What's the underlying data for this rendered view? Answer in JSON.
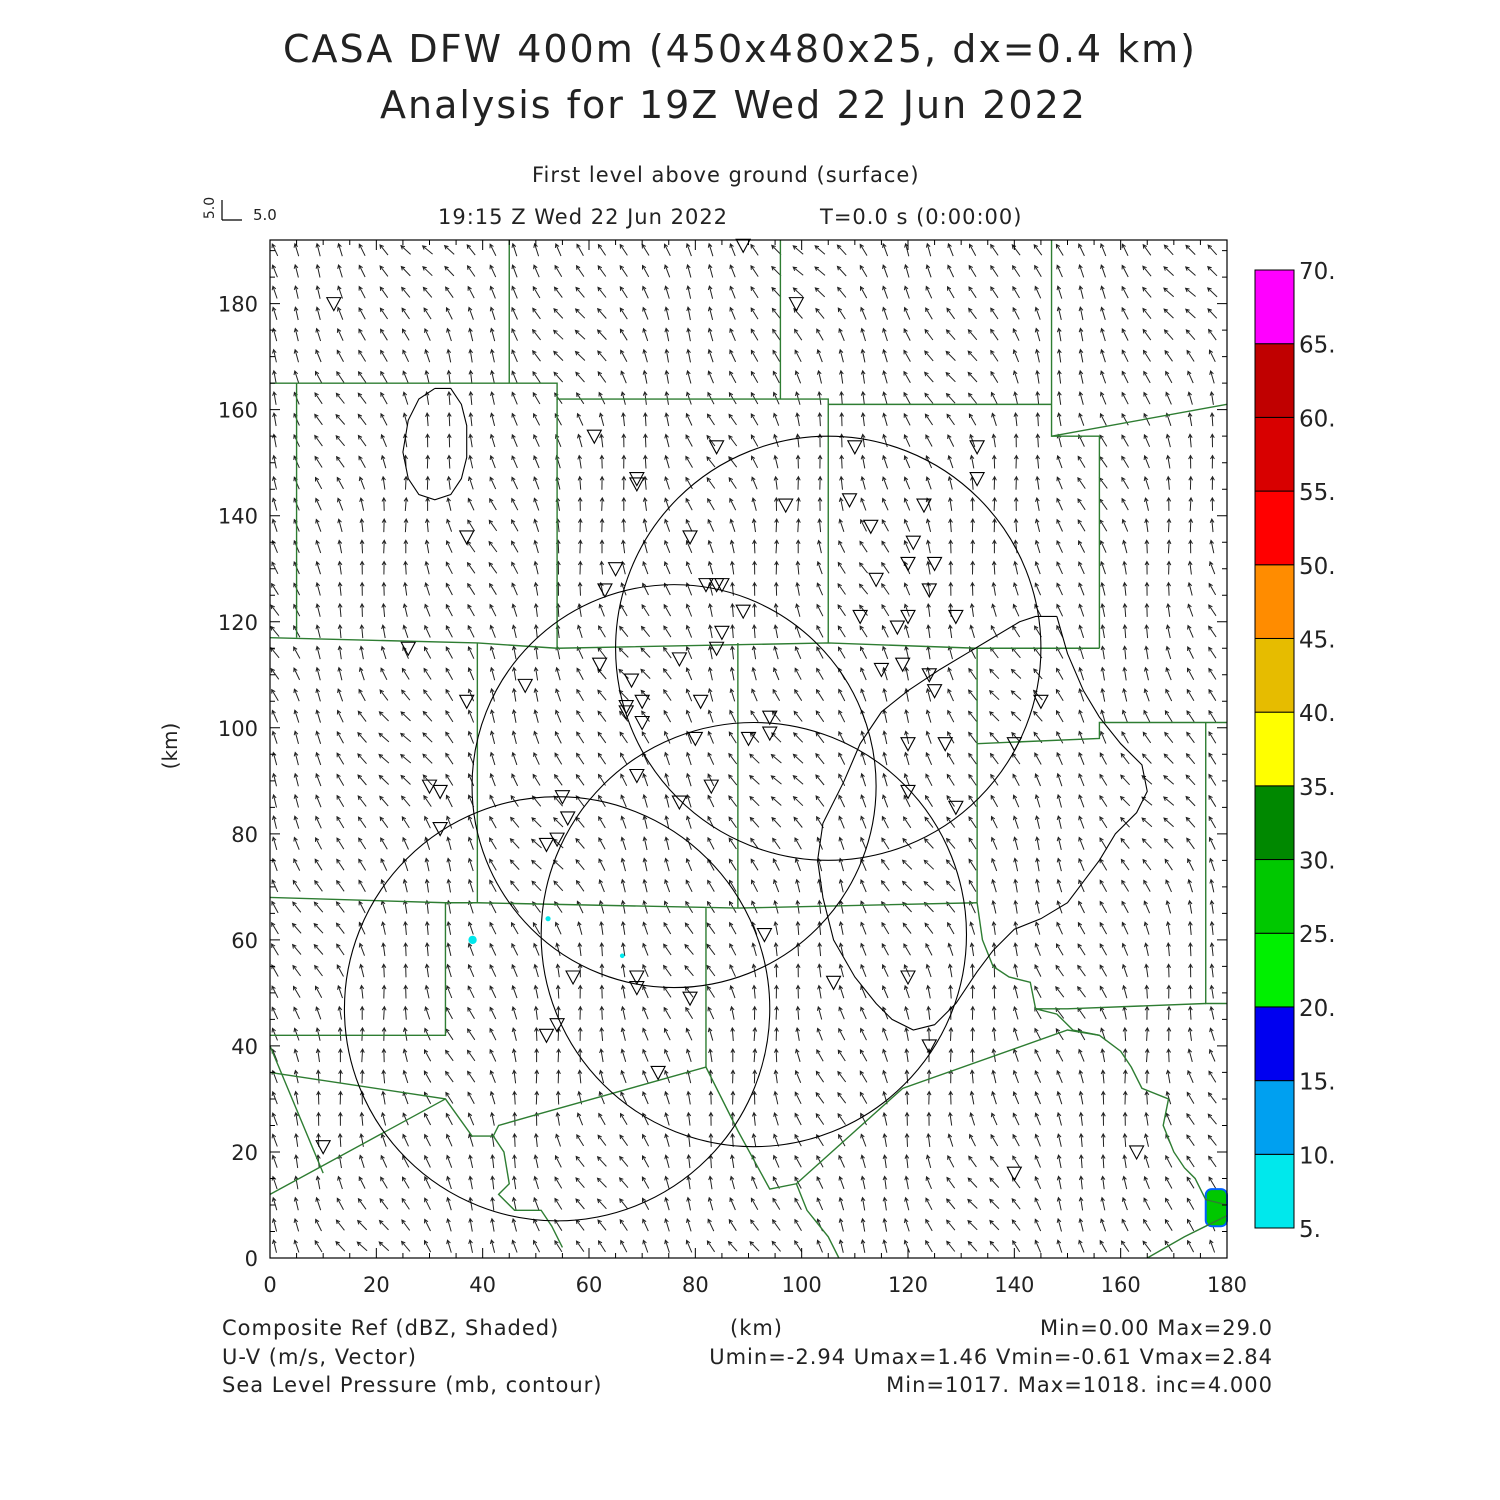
{
  "title_line1": "CASA DFW 400m (450x480x25, dx=0.4 km)",
  "title_line2": "Analysis for 19Z Wed 22 Jun 2022",
  "level_label": "First level above ground (surface)",
  "time_label": "19:15 Z Wed 22 Jun 2022",
  "time_step_label": "T=0.0 s (0:00:00)",
  "vector_scale": {
    "x_label": "5.0",
    "y_label": "5.0"
  },
  "axes": {
    "x_ticks": [
      "0",
      "20",
      "40",
      "60",
      "80",
      "100",
      "120",
      "140",
      "160",
      "180"
    ],
    "y_ticks": [
      "0",
      "20",
      "40",
      "60",
      "80",
      "100",
      "120",
      "140",
      "160",
      "180"
    ],
    "x_unit": "(km)",
    "y_unit": "(km)",
    "xlim": [
      0,
      180
    ],
    "ylim": [
      0,
      192
    ]
  },
  "colorbar": {
    "labels": [
      "5.",
      "10.",
      "15.",
      "20.",
      "25.",
      "30.",
      "35.",
      "40.",
      "45.",
      "50.",
      "55.",
      "60.",
      "65.",
      "70."
    ],
    "colors": [
      "#00e8ec",
      "#00a0f0",
      "#0000f0",
      "#00f000",
      "#00c800",
      "#008800",
      "#ffff00",
      "#e6bc00",
      "#ff8c00",
      "#ff0000",
      "#d80000",
      "#c00000",
      "#ff00ff"
    ]
  },
  "footer": {
    "left1": "Composite Ref (dBZ, Shaded)",
    "left2": "U-V (m/s, Vector)",
    "left3": "Sea Level Pressure (mb, contour)",
    "center": "(km)",
    "right1": "Min=0.00 Max=29.0",
    "right2": "Umin=-2.94 Umax=1.46 Vmin=-0.61 Vmax=2.84",
    "right3": "Min=1017. Max=1018. inc=4.000"
  },
  "colors": {
    "boundary": "#2e7d32",
    "contour": "#000000",
    "radar_marker": "#000000",
    "echo": "#00c800"
  },
  "map_data": {
    "radar_rings": [
      {
        "cx": 105,
        "cy": 115,
        "r": 40
      },
      {
        "cx": 76,
        "cy": 89,
        "r": 38
      },
      {
        "cx": 91,
        "cy": 61,
        "r": 40
      },
      {
        "cx": 54,
        "cy": 47,
        "r": 40
      }
    ],
    "markers": [
      [
        12,
        180
      ],
      [
        89,
        191
      ],
      [
        99,
        180
      ],
      [
        61,
        155
      ],
      [
        84,
        153
      ],
      [
        69,
        146
      ],
      [
        69,
        147
      ],
      [
        110,
        153
      ],
      [
        133,
        153
      ],
      [
        97,
        142
      ],
      [
        109,
        143
      ],
      [
        123,
        142
      ],
      [
        133,
        147
      ],
      [
        113,
        138
      ],
      [
        37,
        136
      ],
      [
        79,
        136
      ],
      [
        65,
        130
      ],
      [
        82,
        127
      ],
      [
        84,
        127
      ],
      [
        85,
        127
      ],
      [
        63,
        126
      ],
      [
        114,
        128
      ],
      [
        121,
        135
      ],
      [
        120,
        131
      ],
      [
        125,
        131
      ],
      [
        124,
        126
      ],
      [
        89,
        122
      ],
      [
        111,
        121
      ],
      [
        120,
        121
      ],
      [
        129,
        121
      ],
      [
        118,
        119
      ],
      [
        85,
        118
      ],
      [
        84,
        115
      ],
      [
        26,
        115
      ],
      [
        62,
        112
      ],
      [
        77,
        113
      ],
      [
        115,
        111
      ],
      [
        119,
        112
      ],
      [
        124,
        110
      ],
      [
        125,
        107
      ],
      [
        68,
        109
      ],
      [
        48,
        108
      ],
      [
        37,
        105
      ],
      [
        81,
        105
      ],
      [
        70,
        105
      ],
      [
        67,
        104
      ],
      [
        67,
        103
      ],
      [
        70,
        101
      ],
      [
        94,
        102
      ],
      [
        145,
        105
      ],
      [
        80,
        98
      ],
      [
        90,
        98
      ],
      [
        94,
        99
      ],
      [
        120,
        97
      ],
      [
        127,
        97
      ],
      [
        140,
        97
      ],
      [
        83,
        89
      ],
      [
        69,
        91
      ],
      [
        30,
        89
      ],
      [
        32,
        88
      ],
      [
        55,
        87
      ],
      [
        77,
        86
      ],
      [
        120,
        88
      ],
      [
        129,
        85
      ],
      [
        32,
        81
      ],
      [
        56,
        83
      ],
      [
        54,
        79
      ],
      [
        52,
        78
      ],
      [
        93,
        61
      ],
      [
        57,
        53
      ],
      [
        69,
        53
      ],
      [
        69,
        51
      ],
      [
        79,
        49
      ],
      [
        106,
        52
      ],
      [
        120,
        53
      ],
      [
        54,
        44
      ],
      [
        52,
        42
      ],
      [
        124,
        40
      ],
      [
        73,
        35
      ],
      [
        10,
        21
      ],
      [
        163,
        20
      ],
      [
        140,
        16
      ]
    ],
    "boundaries": [
      [
        [
          0,
          165
        ],
        [
          49,
          165
        ],
        [
          54,
          165
        ],
        [
          54,
          162
        ],
        [
          96,
          162
        ],
        [
          101,
          162
        ],
        [
          105,
          162
        ],
        [
          105,
          161
        ],
        [
          147,
          161
        ]
      ],
      [
        [
          147,
          192
        ],
        [
          147,
          161
        ],
        [
          147,
          155
        ],
        [
          156,
          155
        ],
        [
          156,
          115
        ]
      ],
      [
        [
          147,
          155
        ],
        [
          180,
          161
        ]
      ],
      [
        [
          45,
          192
        ],
        [
          45,
          165
        ]
      ],
      [
        [
          96,
          192
        ],
        [
          96,
          162
        ]
      ],
      [
        [
          5,
          165
        ],
        [
          5,
          117
        ]
      ],
      [
        [
          54,
          162
        ],
        [
          54,
          115
        ]
      ],
      [
        [
          105,
          161
        ],
        [
          105,
          116
        ]
      ],
      [
        [
          0,
          117
        ],
        [
          39,
          116
        ],
        [
          54,
          115
        ],
        [
          105,
          116
        ],
        [
          133,
          115
        ],
        [
          156,
          115
        ]
      ],
      [
        [
          39,
          116
        ],
        [
          39,
          67
        ]
      ],
      [
        [
          88,
          116
        ],
        [
          88,
          66
        ]
      ],
      [
        [
          133,
          115
        ],
        [
          133,
          67
        ]
      ],
      [
        [
          133,
          97
        ],
        [
          156,
          98
        ],
        [
          156,
          101
        ],
        [
          176,
          101
        ],
        [
          180,
          101
        ]
      ],
      [
        [
          176,
          101
        ],
        [
          176,
          48
        ],
        [
          180,
          48
        ]
      ],
      [
        [
          0,
          68
        ],
        [
          33,
          67
        ],
        [
          39,
          67
        ],
        [
          88,
          66
        ],
        [
          133,
          67
        ]
      ],
      [
        [
          33,
          67
        ],
        [
          33,
          42
        ],
        [
          0,
          42
        ]
      ],
      [
        [
          133,
          67
        ],
        [
          134,
          60
        ],
        [
          136,
          55
        ],
        [
          139,
          53
        ],
        [
          143,
          52
        ],
        [
          144,
          47
        ],
        [
          150,
          47
        ],
        [
          176,
          48
        ]
      ],
      [
        [
          144,
          47
        ],
        [
          148,
          46
        ],
        [
          151,
          43
        ],
        [
          156,
          42
        ],
        [
          160,
          39
        ],
        [
          162,
          36
        ],
        [
          164,
          32
        ],
        [
          169,
          30
        ],
        [
          168,
          25
        ],
        [
          170,
          20
        ],
        [
          172,
          17
        ],
        [
          174,
          15
        ],
        [
          175,
          13
        ],
        [
          176,
          11
        ],
        [
          180,
          10
        ]
      ],
      [
        [
          0,
          35
        ],
        [
          33,
          30
        ],
        [
          38,
          23
        ],
        [
          42,
          23
        ],
        [
          43,
          25
        ],
        [
          50,
          27
        ],
        [
          82,
          36
        ],
        [
          88,
          24
        ],
        [
          94,
          13
        ],
        [
          99,
          14
        ],
        [
          119,
          32
        ],
        [
          150,
          43
        ],
        [
          156,
          42
        ]
      ],
      [
        [
          33,
          30
        ],
        [
          0,
          12
        ]
      ],
      [
        [
          0,
          40
        ],
        [
          10,
          16
        ]
      ],
      [
        [
          82,
          36
        ],
        [
          82,
          66
        ]
      ],
      [
        [
          42,
          23
        ],
        [
          44,
          20
        ],
        [
          45,
          14
        ],
        [
          43,
          12
        ],
        [
          46,
          9
        ],
        [
          51,
          9
        ],
        [
          53,
          6
        ],
        [
          55,
          2
        ]
      ],
      [
        [
          99,
          14
        ],
        [
          101,
          9
        ],
        [
          105,
          4
        ],
        [
          107,
          0
        ]
      ],
      [
        [
          165,
          0
        ],
        [
          172,
          4
        ],
        [
          176,
          6
        ],
        [
          180,
          8
        ]
      ]
    ],
    "pressure_contours": [
      [
        [
          31,
          164
        ],
        [
          34,
          164
        ],
        [
          36,
          161
        ],
        [
          37,
          157
        ],
        [
          37,
          151
        ],
        [
          36,
          147
        ],
        [
          34,
          144
        ],
        [
          31,
          143
        ],
        [
          28,
          144
        ],
        [
          26,
          147
        ],
        [
          25,
          152
        ],
        [
          26,
          158
        ],
        [
          28,
          162
        ],
        [
          31,
          164
        ]
      ],
      [
        [
          148,
          121
        ],
        [
          144,
          121
        ],
        [
          141,
          120
        ],
        [
          136,
          117
        ],
        [
          131,
          114
        ],
        [
          126,
          111
        ],
        [
          120,
          107
        ],
        [
          115,
          103
        ],
        [
          111,
          97
        ],
        [
          108,
          90
        ],
        [
          104,
          82
        ],
        [
          103,
          75
        ],
        [
          104,
          68
        ],
        [
          106,
          60
        ],
        [
          110,
          53
        ],
        [
          114,
          48
        ],
        [
          117,
          45
        ],
        [
          121,
          43
        ],
        [
          125,
          44
        ],
        [
          129,
          48
        ],
        [
          133,
          54
        ],
        [
          136,
          58
        ],
        [
          140,
          62
        ],
        [
          145,
          64
        ],
        [
          150,
          67
        ],
        [
          153,
          71
        ],
        [
          156,
          75
        ],
        [
          159,
          80
        ],
        [
          163,
          84
        ],
        [
          165,
          88
        ],
        [
          164,
          93
        ],
        [
          160,
          97
        ],
        [
          156,
          102
        ],
        [
          153,
          107
        ],
        [
          150,
          114
        ],
        [
          148,
          121
        ]
      ]
    ],
    "echoes": [
      {
        "x": 176,
        "y": 9.5,
        "w": 4,
        "h": 7,
        "color": "#00c800",
        "edge": "#0060ff"
      },
      {
        "x": 37.5,
        "y": 60,
        "w": 1.2,
        "h": 1.2,
        "color": "#00e8ec",
        "edge": "#00e8ec"
      },
      {
        "x": 52,
        "y": 64,
        "w": 0.6,
        "h": 0.6,
        "color": "#00e8ec",
        "edge": "#00e8ec"
      },
      {
        "x": 66,
        "y": 57,
        "w": 0.5,
        "h": 0.5,
        "color": "#00e8ec",
        "edge": "#00e8ec"
      }
    ]
  }
}
